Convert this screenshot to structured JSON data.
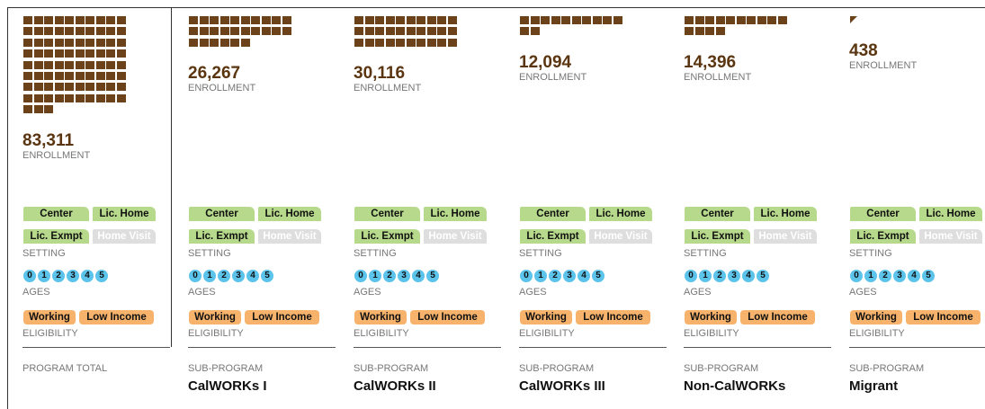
{
  "columns": [
    {
      "enrollment": {
        "value": 83311,
        "label": "83,311"
      },
      "enrollment_caption": "ENROLLMENT",
      "setting": [
        {
          "label": "Center",
          "active": true
        },
        {
          "label": "Lic. Home",
          "active": true
        },
        {
          "label": "Lic. Exmpt",
          "active": true
        },
        {
          "label": "Home Visit",
          "active": false
        }
      ],
      "setting_caption": "SETTING",
      "ages": [
        0,
        1,
        2,
        3,
        4,
        5
      ],
      "ages_caption": "AGES",
      "eligibility": [
        "Working",
        "Low Income"
      ],
      "eligibility_caption": "ELIGIBILITY",
      "kind": "PROGRAM TOTAL"
    },
    {
      "enrollment": {
        "value": 26267,
        "label": "26,267"
      },
      "enrollment_caption": "ENROLLMENT",
      "setting": [
        {
          "label": "Center",
          "active": true
        },
        {
          "label": "Lic. Home",
          "active": true
        },
        {
          "label": "Lic. Exmpt",
          "active": true
        },
        {
          "label": "Home Visit",
          "active": false
        }
      ],
      "setting_caption": "SETTING",
      "ages": [
        0,
        1,
        2,
        3,
        4,
        5
      ],
      "ages_caption": "AGES",
      "eligibility": [
        "Working",
        "Low Income"
      ],
      "eligibility_caption": "ELIGIBILITY",
      "kind": "SUB-PROGRAM",
      "name": "CalWORKs I"
    },
    {
      "enrollment": {
        "value": 30116,
        "label": "30,116"
      },
      "enrollment_caption": "ENROLLMENT",
      "setting": [
        {
          "label": "Center",
          "active": true
        },
        {
          "label": "Lic. Home",
          "active": true
        },
        {
          "label": "Lic. Exmpt",
          "active": true
        },
        {
          "label": "Home Visit",
          "active": false
        }
      ],
      "setting_caption": "SETTING",
      "ages": [
        0,
        1,
        2,
        3,
        4,
        5
      ],
      "ages_caption": "AGES",
      "eligibility": [
        "Working",
        "Low Income"
      ],
      "eligibility_caption": "ELIGIBILITY",
      "kind": "SUB-PROGRAM",
      "name": "CalWORKs II"
    },
    {
      "enrollment": {
        "value": 12094,
        "label": "12,094"
      },
      "enrollment_caption": "ENROLLMENT",
      "setting": [
        {
          "label": "Center",
          "active": true
        },
        {
          "label": "Lic. Home",
          "active": true
        },
        {
          "label": "Lic. Exmpt",
          "active": true
        },
        {
          "label": "Home Visit",
          "active": false
        }
      ],
      "setting_caption": "SETTING",
      "ages": [
        0,
        1,
        2,
        3,
        4,
        5
      ],
      "ages_caption": "AGES",
      "eligibility": [
        "Working",
        "Low Income"
      ],
      "eligibility_caption": "ELIGIBILITY",
      "kind": "SUB-PROGRAM",
      "name": "CalWORKs III"
    },
    {
      "enrollment": {
        "value": 14396,
        "label": "14,396"
      },
      "enrollment_caption": "ENROLLMENT",
      "setting": [
        {
          "label": "Center",
          "active": true
        },
        {
          "label": "Lic. Home",
          "active": true
        },
        {
          "label": "Lic. Exmpt",
          "active": true
        },
        {
          "label": "Home Visit",
          "active": false
        }
      ],
      "setting_caption": "SETTING",
      "ages": [
        0,
        1,
        2,
        3,
        4,
        5
      ],
      "ages_caption": "AGES",
      "eligibility": [
        "Working",
        "Low Income"
      ],
      "eligibility_caption": "ELIGIBILITY",
      "kind": "SUB-PROGRAM",
      "name": "Non-CalWORKs"
    },
    {
      "enrollment": {
        "value": 438,
        "label": "438"
      },
      "enrollment_caption": "ENROLLMENT",
      "setting": [
        {
          "label": "Center",
          "active": true
        },
        {
          "label": "Lic. Home",
          "active": true
        },
        {
          "label": "Lic. Exmpt",
          "active": true
        },
        {
          "label": "Home Visit",
          "active": false
        }
      ],
      "setting_caption": "SETTING",
      "ages": [
        0,
        1,
        2,
        3,
        4,
        5
      ],
      "ages_caption": "AGES",
      "eligibility": [
        "Working",
        "Low Income"
      ],
      "eligibility_caption": "ELIGIBILITY",
      "kind": "SUB-PROGRAM",
      "name": "Migrant"
    }
  ]
}
